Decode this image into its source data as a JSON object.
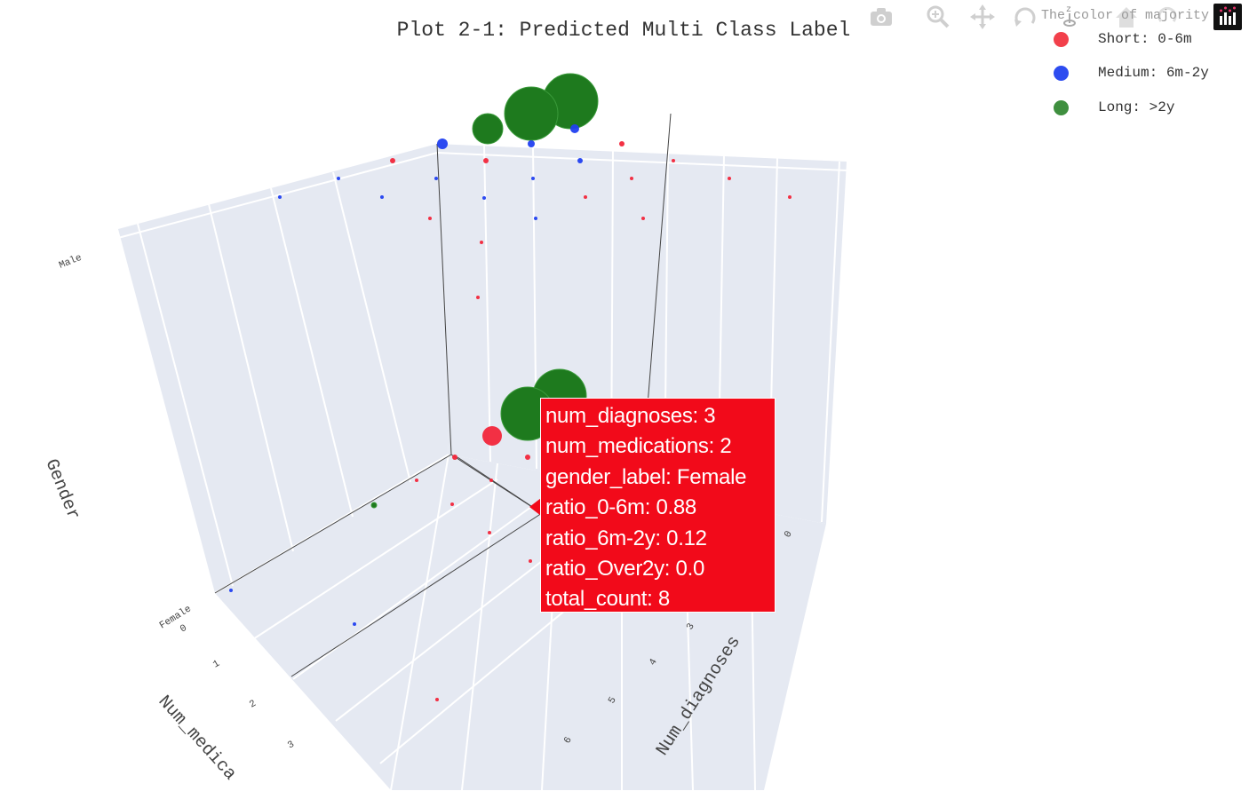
{
  "chart_data": {
    "type": "scatter",
    "title": "Plot 2-1: Predicted Multi Class Label",
    "axes": {
      "x": {
        "label": "Num_diagnoses",
        "tick_labels": [
          "0",
          "3",
          "4",
          "5",
          "6"
        ]
      },
      "y": {
        "label": "Num_medica",
        "tick_labels": [
          "0",
          "1",
          "2",
          "3"
        ]
      },
      "z": {
        "label": "Gender",
        "tick_labels": [
          "Female",
          "Male"
        ]
      }
    },
    "legend": {
      "placement": "top-right",
      "title": "The color of majority",
      "items": [
        {
          "name": "Short: 0-6m",
          "color": "#f2404b"
        },
        {
          "name": "Medium: 6m-2y",
          "color": "#2d4cf0"
        },
        {
          "name": "Long: >2y",
          "color": "#3f8f3f"
        }
      ]
    },
    "hover": {
      "num_diagnoses": 3,
      "num_medications": 2,
      "gender_label": "Female",
      "ratio_0_6m": 0.88,
      "ratio_6m_2y": 0.12,
      "ratio_over2y": 0.0,
      "total_count": 8
    },
    "background": "#e5e9f2",
    "grid": true
  },
  "tooltip": {
    "lines": [
      "num_diagnoses: 3",
      "num_medications: 2",
      "gender_label: Female",
      "ratio_0-6m: 0.88",
      "ratio_6m-2y: 0.12",
      "ratio_Over2y: 0.0",
      "total_count: 8"
    ]
  },
  "modebar": {
    "buttons": [
      "camera-icon",
      "zoom-icon",
      "pan-icon",
      "orbit-icon",
      "turntable-icon",
      "home-icon",
      "reset-camera-icon"
    ],
    "z_glyph": "z"
  }
}
